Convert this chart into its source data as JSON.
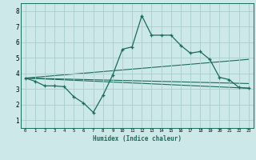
{
  "xlabel": "Humidex (Indice chaleur)",
  "bg_color": "#cce8e8",
  "grid_color": "#aacccc",
  "line_color": "#1a6b5a",
  "xlim": [
    -0.5,
    23.5
  ],
  "ylim": [
    0.5,
    8.5
  ],
  "xticks": [
    0,
    1,
    2,
    3,
    4,
    5,
    6,
    7,
    8,
    9,
    10,
    11,
    12,
    13,
    14,
    15,
    16,
    17,
    18,
    19,
    20,
    21,
    22,
    23
  ],
  "yticks": [
    1,
    2,
    3,
    4,
    5,
    6,
    7,
    8
  ],
  "line1_x": [
    0,
    1,
    2,
    3,
    4,
    5,
    6,
    7,
    8,
    9,
    10,
    11,
    12,
    13,
    14,
    15,
    16,
    17,
    18,
    19,
    20,
    21,
    22,
    23
  ],
  "line1_y": [
    3.7,
    3.5,
    3.2,
    3.2,
    3.15,
    2.5,
    2.1,
    1.5,
    2.6,
    3.9,
    5.55,
    5.7,
    7.7,
    6.45,
    6.45,
    6.45,
    5.8,
    5.3,
    5.4,
    4.9,
    3.75,
    3.6,
    3.1,
    3.05
  ],
  "line2_x": [
    0,
    23
  ],
  "line2_y": [
    3.7,
    3.05
  ],
  "line3_x": [
    0,
    23
  ],
  "line3_y": [
    3.7,
    4.9
  ],
  "line4_x": [
    0,
    23
  ],
  "line4_y": [
    3.7,
    3.35
  ]
}
